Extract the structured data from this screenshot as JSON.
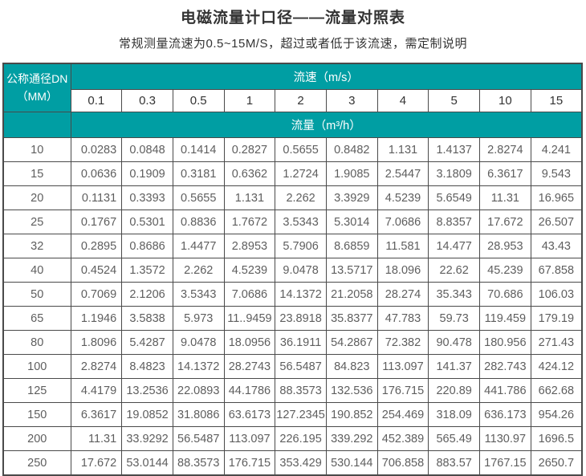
{
  "page": {
    "title": "电磁流量计口径——流量对照表",
    "subtitle": "常规测量流速为0.5~15M/S，超过或者低于该流速，需定制说明"
  },
  "colors": {
    "accent_teal": "#009EA3",
    "border": "#4a4a4a",
    "data_text": "#5e5e5e",
    "title_text": "#333333"
  },
  "table": {
    "corner_line1": "公称通径DN",
    "corner_line2": "（MM）",
    "velocity_header": "流速（m/s）",
    "flow_header": "流量（m³/h）",
    "velocities": [
      "0.1",
      "0.3",
      "0.5",
      "1",
      "2",
      "3",
      "4",
      "5",
      "10",
      "15"
    ],
    "rows": [
      {
        "dn": "10",
        "values": [
          "0.0283",
          "0.0848",
          "0.1414",
          "0.2827",
          "0.5655",
          "0.8482",
          "1.131",
          "1.4137",
          "2.8274",
          "4.241"
        ]
      },
      {
        "dn": "15",
        "values": [
          "0.0636",
          "0.1909",
          "0.3181",
          "0.6362",
          "1.2724",
          "1.9085",
          "2.5447",
          "3.1809",
          "6.3617",
          "9.543"
        ]
      },
      {
        "dn": "20",
        "values": [
          "0.1131",
          "0.3393",
          "0.5655",
          "1.131",
          "2.262",
          "3.3929",
          "4.5239",
          "5.6549",
          "11.31",
          "16.965"
        ]
      },
      {
        "dn": "25",
        "values": [
          "0.1767",
          "0.5301",
          "0.8836",
          "1.7672",
          "3.5343",
          "5.3014",
          "7.0686",
          "8.8357",
          "17.672",
          "26.507"
        ]
      },
      {
        "dn": "32",
        "values": [
          "0.2895",
          "0.8686",
          "1.4477",
          "2.8953",
          "5.7906",
          "8.6859",
          "11.581",
          "14.477",
          "28.953",
          "43.43"
        ]
      },
      {
        "dn": "40",
        "values": [
          "0.4524",
          "1.3572",
          "2.262",
          "4.5239",
          "9.0478",
          "13.5717",
          "18.096",
          "22.62",
          "45.239",
          "67.858"
        ]
      },
      {
        "dn": "50",
        "values": [
          "0.7069",
          "2.1206",
          "3.5343",
          "7.0686",
          "14.1372",
          "21.2058",
          "28.274",
          "35.343",
          "70.686",
          "106.03"
        ]
      },
      {
        "dn": "65",
        "values": [
          "1.1946",
          "3.5838",
          "5.973",
          "11..9459",
          "23.8918",
          "35.8377",
          "47.783",
          "59.73",
          "119.459",
          "179.19"
        ]
      },
      {
        "dn": "80",
        "values": [
          "1.8096",
          "5.4287",
          "9.0478",
          "18.0956",
          "36.1911",
          "54.2867",
          "72.382",
          "90.478",
          "180.956",
          "271.43"
        ]
      },
      {
        "dn": "100",
        "values": [
          "2.8274",
          "8.4823",
          "14.1372",
          "28.2743",
          "56.5487",
          "84.823",
          "113.097",
          "141.37",
          "282.743",
          "424.12"
        ]
      },
      {
        "dn": "125",
        "values": [
          "4.4179",
          "13.2536",
          "22.0893",
          "44.1786",
          "88.3573",
          "132.536",
          "176.715",
          "220.89",
          "441.786",
          "662.68"
        ]
      },
      {
        "dn": "150",
        "values": [
          "6.3617",
          "19.0852",
          "31.8086",
          "63.6173",
          "127.2345",
          "190.852",
          "254.469",
          "318.09",
          "636.173",
          "954.26"
        ]
      },
      {
        "dn": "200",
        "values": [
          "11.31",
          "33.9292",
          "56.5487",
          "113.097",
          "226.195",
          "339.292",
          "452.389",
          "565.49",
          "1130.97",
          "1696.5"
        ]
      },
      {
        "dn": "250",
        "values": [
          "17.672",
          "53.0144",
          "88.3573",
          "176.715",
          "353.429",
          "530.144",
          "706.858",
          "883.57",
          "1767.15",
          "2650.7"
        ]
      }
    ]
  }
}
